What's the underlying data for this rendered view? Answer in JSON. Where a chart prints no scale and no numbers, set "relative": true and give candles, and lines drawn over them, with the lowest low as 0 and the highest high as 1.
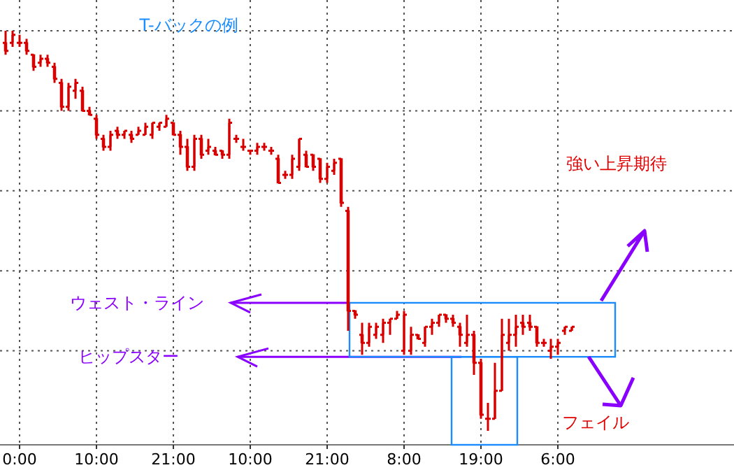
{
  "chart_data": {
    "type": "candlestick",
    "title": "T-バックの例",
    "relative": true,
    "grid": true,
    "color": "#d40000",
    "categories": [
      null,
      null,
      "0:00",
      null,
      null,
      null,
      null,
      null,
      null,
      null,
      null,
      null,
      null,
      "10:00",
      null,
      null,
      null,
      null,
      null,
      null,
      null,
      null,
      null,
      null,
      "21:00",
      null,
      null,
      null,
      null,
      null,
      null,
      null,
      null,
      null,
      null,
      "10:00",
      null,
      null,
      null,
      null,
      null,
      null,
      null,
      null,
      null,
      null,
      "21:00",
      null,
      null,
      null,
      null,
      null,
      null,
      null,
      null,
      null,
      null,
      "8:00",
      null,
      null,
      null,
      null,
      null,
      null,
      null,
      null,
      null,
      null,
      "19:00",
      null,
      null,
      null,
      null,
      null,
      null,
      null,
      null,
      null,
      null,
      "6:00",
      null,
      null,
      null,
      null,
      null,
      null,
      null,
      null,
      null,
      null,
      null,
      null,
      null,
      null,
      null,
      null,
      null,
      null,
      null,
      null,
      null,
      null,
      null,
      null,
      null
    ],
    "ohlc": [
      [
        0.97,
        1.0,
        0.94,
        0.95
      ],
      [
        0.97,
        1.0,
        0.96,
        0.99
      ],
      [
        0.97,
        0.99,
        0.96,
        0.97
      ],
      [
        0.97,
        0.98,
        0.94,
        0.95
      ],
      [
        0.94,
        0.94,
        0.9,
        0.91
      ],
      [
        0.92,
        0.94,
        0.91,
        0.93
      ],
      [
        0.93,
        0.94,
        0.91,
        0.92
      ],
      [
        0.91,
        0.92,
        0.87,
        0.88
      ],
      [
        0.87,
        0.88,
        0.8,
        0.81
      ],
      [
        0.81,
        0.87,
        0.8,
        0.86
      ],
      [
        0.85,
        0.88,
        0.83,
        0.87
      ],
      [
        0.85,
        0.86,
        0.8,
        0.8
      ],
      [
        0.8,
        0.81,
        0.79,
        0.79
      ],
      [
        0.78,
        0.79,
        0.73,
        0.74
      ],
      [
        0.73,
        0.74,
        0.7,
        0.71
      ],
      [
        0.71,
        0.75,
        0.7,
        0.74
      ],
      [
        0.75,
        0.76,
        0.73,
        0.74
      ],
      [
        0.74,
        0.75,
        0.73,
        0.75
      ],
      [
        0.74,
        0.75,
        0.72,
        0.73
      ],
      [
        0.74,
        0.76,
        0.74,
        0.75
      ],
      [
        0.74,
        0.77,
        0.74,
        0.76
      ],
      [
        0.74,
        0.77,
        0.73,
        0.77
      ],
      [
        0.76,
        0.77,
        0.75,
        0.77
      ],
      [
        0.76,
        0.79,
        0.76,
        0.78
      ],
      [
        0.77,
        0.77,
        0.74,
        0.74
      ],
      [
        0.74,
        0.75,
        0.69,
        0.71
      ],
      [
        0.71,
        0.73,
        0.65,
        0.66
      ],
      [
        0.66,
        0.74,
        0.65,
        0.73
      ],
      [
        0.73,
        0.74,
        0.68,
        0.69
      ],
      [
        0.7,
        0.73,
        0.69,
        0.71
      ],
      [
        0.7,
        0.71,
        0.69,
        0.69
      ],
      [
        0.7,
        0.7,
        0.68,
        0.69
      ],
      [
        0.69,
        0.78,
        0.68,
        0.77
      ],
      [
        0.73,
        0.74,
        0.72,
        0.73
      ],
      [
        0.71,
        0.73,
        0.7,
        0.71
      ],
      [
        0.7,
        0.7,
        0.69,
        0.7
      ],
      [
        0.7,
        0.72,
        0.69,
        0.71
      ],
      [
        0.71,
        0.72,
        0.7,
        0.71
      ],
      [
        0.7,
        0.71,
        0.69,
        0.7
      ],
      [
        0.68,
        0.69,
        0.62,
        0.62
      ],
      [
        0.64,
        0.65,
        0.63,
        0.64
      ],
      [
        0.64,
        0.69,
        0.63,
        0.68
      ],
      [
        0.66,
        0.73,
        0.65,
        0.73
      ],
      [
        0.69,
        0.7,
        0.66,
        0.66
      ],
      [
        0.69,
        0.69,
        0.65,
        0.66
      ],
      [
        0.68,
        0.68,
        0.62,
        0.63
      ],
      [
        0.63,
        0.67,
        0.62,
        0.66
      ],
      [
        0.65,
        0.68,
        0.64,
        0.67
      ],
      [
        0.68,
        0.68,
        0.56,
        0.57
      ],
      [
        0.55,
        0.56,
        0.25,
        0.3
      ],
      [
        0.3,
        0.3,
        0.28,
        0.29
      ],
      [
        0.24,
        0.27,
        0.19,
        0.22
      ],
      [
        0.22,
        0.27,
        0.21,
        0.26
      ],
      [
        0.24,
        0.27,
        0.23,
        0.26
      ],
      [
        0.24,
        0.28,
        0.22,
        0.27
      ],
      [
        0.27,
        0.28,
        0.24,
        0.28
      ],
      [
        0.28,
        0.3,
        0.28,
        0.29
      ],
      [
        0.2,
        0.3,
        0.19,
        0.29
      ],
      [
        0.2,
        0.26,
        0.19,
        0.24
      ],
      [
        0.24,
        0.24,
        0.23,
        0.23
      ],
      [
        0.22,
        0.26,
        0.21,
        0.26
      ],
      [
        0.26,
        0.28,
        0.24,
        0.27
      ],
      [
        0.27,
        0.29,
        0.26,
        0.29
      ],
      [
        0.29,
        0.29,
        0.27,
        0.28
      ],
      [
        0.28,
        0.29,
        0.26,
        0.27
      ],
      [
        0.26,
        0.27,
        0.21,
        0.24
      ],
      [
        0.22,
        0.29,
        0.21,
        0.24
      ],
      [
        0.24,
        0.25,
        0.14,
        0.17
      ],
      [
        0.17,
        0.18,
        0.03,
        0.04
      ],
      [
        0.03,
        0.07,
        0.0,
        0.03
      ],
      [
        0.03,
        0.17,
        0.03,
        0.1
      ],
      [
        0.1,
        0.28,
        0.1,
        0.24
      ],
      [
        0.22,
        0.28,
        0.2,
        0.24
      ],
      [
        0.24,
        0.29,
        0.21,
        0.26
      ],
      [
        0.27,
        0.29,
        0.24,
        0.26
      ],
      [
        0.27,
        0.29,
        0.25,
        0.26
      ],
      [
        0.26,
        0.26,
        0.21,
        0.22
      ],
      [
        0.22,
        0.23,
        0.21,
        0.22
      ],
      [
        0.2,
        0.23,
        0.18,
        0.21
      ],
      [
        0.21,
        0.23,
        0.19,
        0.22
      ],
      [
        0.25,
        0.26,
        0.24,
        0.26
      ],
      [
        0.25,
        0.26,
        0.25,
        0.26
      ],
      null,
      null,
      null,
      null,
      null,
      null,
      null,
      null,
      null,
      null,
      null,
      null,
      null,
      null,
      null,
      null,
      null,
      null,
      null,
      null,
      null,
      null,
      null
    ],
    "ref_lines": [
      {
        "axis": "y",
        "value": 0.32,
        "label": "ウェスト・ライン",
        "color": "#8a00ff"
      },
      {
        "axis": "y",
        "value": 0.185,
        "label": "ヒップスター",
        "color": "#8a00ff"
      }
    ],
    "annotations": [
      "強い上昇期待",
      "フェイル"
    ]
  }
}
